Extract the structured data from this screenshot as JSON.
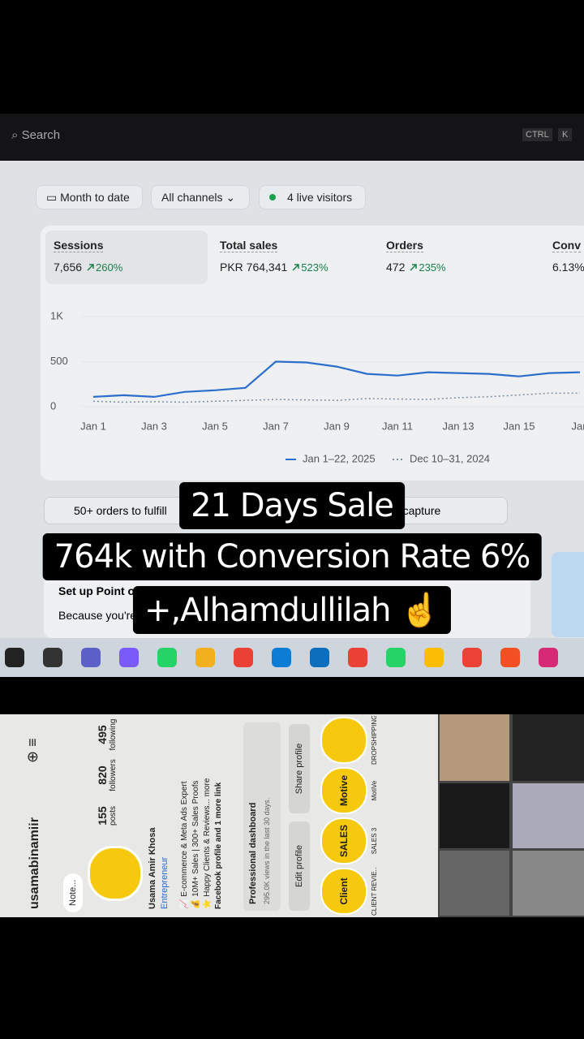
{
  "search": {
    "placeholder": "Search",
    "shortcut": [
      "CTRL",
      "K"
    ]
  },
  "filters": [
    "Month to date",
    "All channels",
    "4 live visitors"
  ],
  "metrics": [
    {
      "label": "Sessions",
      "value": "7,656",
      "change": "260%"
    },
    {
      "label": "Total sales",
      "value": "PKR 764,341",
      "change": "523%"
    },
    {
      "label": "Orders",
      "value": "472",
      "change": "235%"
    },
    {
      "label": "Conv",
      "value": "6.13%"
    }
  ],
  "chart": {
    "type": "line",
    "categories": [
      "Jan 1",
      null,
      "Jan 3",
      null,
      "Jan 5",
      null,
      "Jan 7",
      null,
      "Jan 9",
      null,
      "Jan 11",
      null,
      "Jan 13",
      null,
      "Jan 15",
      null,
      "Jan"
    ],
    "ylim": [
      0,
      1000
    ],
    "yticks": [
      0,
      500,
      {
        "value": 1000,
        "label": "1K"
      }
    ],
    "series": [
      {
        "name": "Jan 1–22, 2025",
        "color": "#2c6ecb",
        "values": [
          109,
          127,
          109,
          164,
          182,
          209,
          500,
          491,
          445,
          364,
          345,
          382,
          373,
          364,
          336,
          373,
          382
        ]
      },
      {
        "name": "Dec 10–31, 2024",
        "color": "#7b8fa3",
        "values": [
          60,
          50,
          55,
          50,
          60,
          70,
          80,
          75,
          70,
          90,
          85,
          80,
          100,
          110,
          130,
          150,
          150
        ]
      }
    ]
  },
  "cards": [
    "50+ orders to fulfill",
    "to capture"
  ],
  "setup": {
    "title": "Set up Point of",
    "text": "Because you're in"
  },
  "overlay": [
    "21 Days Sale",
    "764k with Conversion Rate 6%",
    "+,Alhamdullilah ☝️"
  ],
  "profile": {
    "username": "usamabinamiir",
    "note": "Note...",
    "stats": [
      {
        "value": "155",
        "label": "posts"
      },
      {
        "value": "820",
        "label": "followers"
      },
      {
        "value": "495",
        "label": "following"
      }
    ],
    "name": "Usama Amir Khosa",
    "category": "Entrepreneur",
    "bio": [
      "📈 E-commerce & Meta Ads Expert",
      "💰 10M+ Sales | 300+ Sales Proofs",
      "⭐ Happy Clients & Reviews... more",
      "Facebook profile and 1 more link"
    ],
    "dashboard": {
      "title": "Professional dashboard",
      "text": "295.0K views in the last 30 days."
    },
    "buttons": [
      "Edit profile",
      "Share profile"
    ],
    "highlights": [
      {
        "cover": "Client",
        "label": "CLIENT REVIE..."
      },
      {
        "cover": "SALES",
        "label": "SALES 3"
      },
      {
        "cover": "Motive",
        "label": "MotiVe"
      },
      {
        "cover": "",
        "label": "DROPSHIPPING"
      }
    ]
  }
}
